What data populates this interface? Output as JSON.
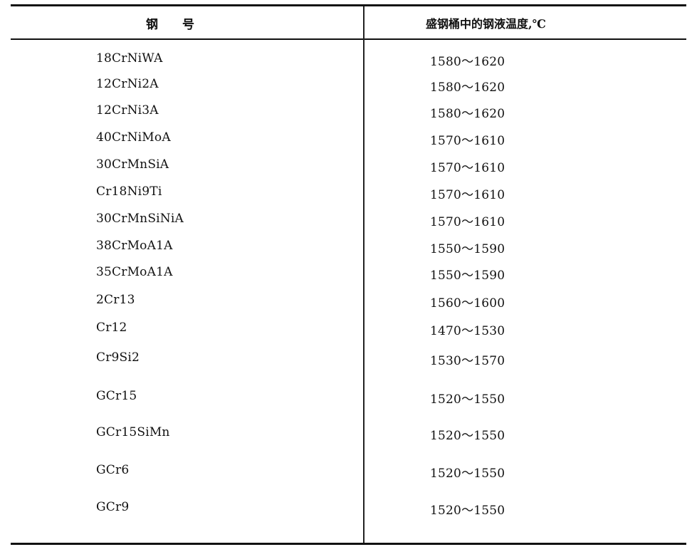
{
  "table": {
    "headers": [
      "钢　　号",
      "盛钢桶中的钢液温度,℃"
    ],
    "rows": [
      [
        "18CrNiWA",
        "1580～1620"
      ],
      [
        "12CrNi2A",
        "1580～1620"
      ],
      [
        "12CrNi3A",
        "1580～1620"
      ],
      [
        "40CrNiMoA",
        "1570～1610"
      ],
      [
        "30CrMnSiA",
        "1570～1610"
      ],
      [
        "Cr18Ni9Ti",
        "1570～1610"
      ],
      [
        "30CrMnSiNiA",
        "1570～1610"
      ],
      [
        "38CrMoA1A",
        "1550～1590"
      ],
      [
        "35CrMoA1A",
        "1550～1590"
      ],
      [
        "2Cr13",
        "1560～1600"
      ],
      [
        "Cr12",
        "1470～1530"
      ],
      [
        "Cr9Si2",
        "1530～1570"
      ],
      [
        "GCr15",
        "1520～1550"
      ],
      [
        "GCr15SiMn",
        "1520～1550"
      ],
      [
        "GCr6",
        "1520～1550"
      ],
      [
        "GCr9",
        "1520～1550"
      ]
    ]
  }
}
